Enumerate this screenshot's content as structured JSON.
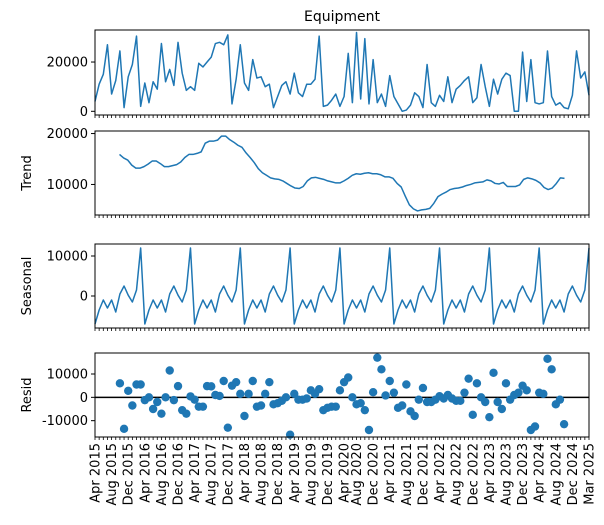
{
  "chart_data": [
    {
      "type": "line",
      "panel": "observed",
      "title": "Equipment",
      "ylabel": "",
      "ylim": [
        -1500,
        33000
      ],
      "yticks": [
        0,
        20000
      ],
      "color": "#1f77b4",
      "values": [
        4000,
        11000,
        15000,
        27000,
        7000,
        12500,
        24500,
        1500,
        14000,
        19000,
        30500,
        2000,
        11500,
        3500,
        12000,
        9000,
        27500,
        12000,
        17000,
        10500,
        28000,
        15500,
        8500,
        10000,
        8500,
        19500,
        18000,
        20000,
        22000,
        27500,
        28000,
        27000,
        31000,
        3000,
        13000,
        27000,
        11500,
        8500,
        21000,
        13500,
        14000,
        10000,
        11000,
        1500,
        6000,
        10500,
        12000,
        7000,
        15500,
        7500,
        6000,
        11000,
        11000,
        13000,
        30500,
        2000,
        2500,
        4500,
        7000,
        2000,
        6000,
        23500,
        3500,
        32000,
        5000,
        29500,
        3000,
        21000,
        3500,
        7000,
        2000,
        14500,
        6000,
        3000,
        0,
        500,
        2500,
        7500,
        6000,
        1500,
        19000,
        3500,
        2000,
        6500,
        4000,
        14000,
        3500,
        9000,
        10500,
        12500,
        14000,
        3500,
        5500,
        19000,
        10000,
        2000,
        13000,
        7000,
        13000,
        15500,
        14500,
        0,
        0,
        24000,
        4000,
        21000,
        3500,
        3000,
        3500,
        24500,
        6000,
        2500,
        3500,
        1500,
        1000,
        6500,
        24500,
        13500,
        16000,
        6500
      ]
    },
    {
      "type": "line",
      "panel": "trend",
      "title": "",
      "ylabel": "Trend",
      "ylim": [
        4000,
        20500
      ],
      "yticks": [
        10000,
        20000
      ],
      "color": "#1f77b4",
      "values": [
        null,
        null,
        null,
        null,
        null,
        null,
        15900,
        15200,
        14800,
        13800,
        13200,
        13200,
        13500,
        14000,
        14600,
        14600,
        14100,
        13500,
        13500,
        13700,
        13900,
        14400,
        15300,
        15900,
        15900,
        16100,
        16400,
        18100,
        18500,
        18500,
        18700,
        19500,
        19500,
        18800,
        18300,
        17700,
        17300,
        16200,
        15300,
        14300,
        13100,
        12300,
        11800,
        11300,
        11100,
        11000,
        10700,
        10200,
        9700,
        9300,
        9200,
        9600,
        10700,
        11300,
        11400,
        11200,
        11000,
        10700,
        10500,
        10300,
        10300,
        10700,
        11200,
        11800,
        12100,
        12000,
        12200,
        12300,
        12100,
        12100,
        11900,
        11500,
        11500,
        11200,
        10200,
        9500,
        7700,
        6000,
        5200,
        4800,
        5000,
        5100,
        5300,
        6300,
        7600,
        8100,
        8500,
        9000,
        9200,
        9300,
        9500,
        9800,
        10000,
        10300,
        10400,
        10500,
        10900,
        10700,
        10200,
        10100,
        10400,
        9600,
        9600,
        9600,
        9900,
        11000,
        11300,
        11100,
        10800,
        10300,
        9400,
        9000,
        9300,
        10200,
        11300,
        11200,
        null,
        null,
        null,
        null,
        null,
        null
      ]
    },
    {
      "type": "line",
      "panel": "seasonal",
      "title": "",
      "ylabel": "Seasonal",
      "ylim": [
        -8000,
        13000
      ],
      "yticks": [
        0,
        10000
      ],
      "color": "#1f77b4",
      "values": [
        -7000,
        -3500,
        -1000,
        -3000,
        -1000,
        -4000,
        500,
        2500,
        200,
        -1500,
        1500,
        12000,
        -7000,
        -3500,
        -1000,
        -3000,
        -1000,
        -4000,
        500,
        2500,
        200,
        -1500,
        1500,
        12000,
        -7000,
        -3500,
        -1000,
        -3000,
        -1000,
        -4000,
        500,
        2500,
        200,
        -1500,
        1500,
        12000,
        -7000,
        -3500,
        -1000,
        -3000,
        -1000,
        -4000,
        500,
        2500,
        200,
        -1500,
        1500,
        12000,
        -7000,
        -3500,
        -1000,
        -3000,
        -1000,
        -4000,
        500,
        2500,
        200,
        -1500,
        1500,
        12000,
        -7000,
        -3500,
        -1000,
        -3000,
        -1000,
        -4000,
        500,
        2500,
        200,
        -1500,
        1500,
        12000,
        -7000,
        -3500,
        -1000,
        -3000,
        -1000,
        -4000,
        500,
        2500,
        200,
        -1500,
        1500,
        12000,
        -7000,
        -3500,
        -1000,
        -3000,
        -1000,
        -4000,
        500,
        2500,
        200,
        -1500,
        1500,
        12000,
        -7000,
        -3500,
        -1000,
        -3000,
        -1000,
        -4000,
        500,
        2500,
        200,
        -1500,
        1500,
        12000,
        -7000,
        -3500,
        -1000,
        -3000,
        -1000,
        -4000,
        500,
        2500,
        200,
        -1500,
        1500,
        12000
      ]
    },
    {
      "type": "scatter",
      "panel": "resid",
      "title": "",
      "ylabel": "Resid",
      "ylim": [
        -17000,
        19000
      ],
      "yticks": [
        -10000,
        0,
        10000
      ],
      "baseline": 0,
      "color": "#1f77b4",
      "values": [
        null,
        null,
        null,
        null,
        null,
        null,
        6000,
        -13500,
        2800,
        -3500,
        5500,
        5500,
        -1200,
        0,
        -5000,
        -2000,
        -7000,
        0,
        11500,
        -1200,
        4800,
        -5500,
        -7000,
        400,
        -1000,
        -4000,
        -4000,
        4800,
        4700,
        1000,
        600,
        7000,
        -13000,
        5000,
        6500,
        1500,
        -8000,
        1500,
        7000,
        -4000,
        -3500,
        1500,
        6500,
        -3000,
        -2500,
        -1500,
        0,
        -16000,
        1500,
        -1000,
        -1000,
        -500,
        3000,
        1500,
        3500,
        -5500,
        -4500,
        -4000,
        -4000,
        3000,
        6500,
        8500,
        0,
        -3000,
        -2500,
        -5500,
        -14000,
        2200,
        17000,
        12000,
        800,
        7000,
        2000,
        -4500,
        -3500,
        5500,
        -6000,
        -8000,
        -1000,
        4000,
        -2000,
        -2000,
        -1000,
        500,
        -500,
        1000,
        -500,
        -1500,
        -1500,
        2000,
        8000,
        -7500,
        6000,
        0,
        -2000,
        -8500,
        10500,
        -2000,
        -5000,
        6000,
        -1000,
        1000,
        2000,
        5000,
        3000,
        -14000,
        -12500,
        2000,
        1500,
        16500,
        12000,
        -3000,
        -1000,
        -11500,
        null,
        null,
        null,
        null,
        null,
        null
      ]
    }
  ],
  "x_axis": {
    "tick_labels": [
      "Apr 2015",
      "Aug 2015",
      "Dec 2015",
      "Apr 2016",
      "Aug 2016",
      "Dec 2016",
      "Apr 2017",
      "Aug 2017",
      "Dec 2017",
      "Apr 2018",
      "Aug 2018",
      "Dec 2018",
      "Apr 2019",
      "Aug 2019",
      "Dec 2019",
      "Apr 2020",
      "Aug 2020",
      "Dec 2020",
      "Apr 2021",
      "Aug 2021",
      "Dec 2021",
      "Apr 2022",
      "Aug 2022",
      "Dec 2022",
      "Apr 2023",
      "Aug 2023",
      "Dec 2023",
      "Apr 2024",
      "Aug 2024",
      "Dec 2024",
      "Mar 2025"
    ]
  }
}
